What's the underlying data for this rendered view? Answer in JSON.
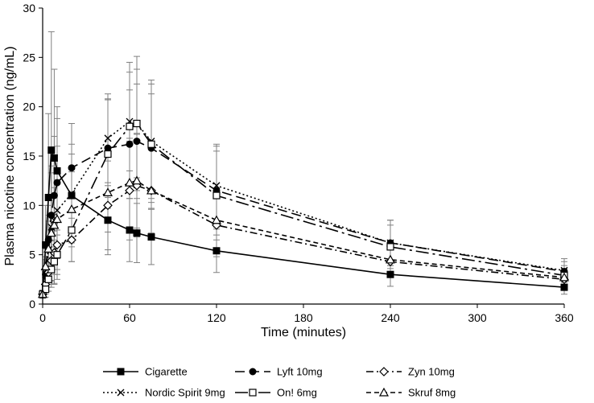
{
  "chart_data": {
    "type": "line",
    "xlabel": "Time (minutes)",
    "ylabel": "Plasma nicotine concentration (ng/mL)",
    "xlim": [
      0,
      360
    ],
    "ylim": [
      0,
      30
    ],
    "x_ticks": [
      0,
      60,
      120,
      180,
      240,
      300,
      360
    ],
    "y_ticks": [
      0,
      5,
      10,
      15,
      20,
      25,
      30
    ],
    "grid": false,
    "legend_position": "bottom",
    "series": [
      {
        "name": "Cigarette",
        "dash": "solid",
        "marker": "square-filled",
        "x": [
          0,
          2,
          4,
          6,
          8,
          10,
          20,
          45,
          60,
          65,
          75,
          120,
          240,
          360
        ],
        "y": [
          1.0,
          6.0,
          10.8,
          15.6,
          14.8,
          13.5,
          11.0,
          8.5,
          7.5,
          7.2,
          6.8,
          5.4,
          3.0,
          1.7
        ],
        "err": [
          0.4,
          4.0,
          8.5,
          12.0,
          9.0,
          6.5,
          4.2,
          3.5,
          3.2,
          3.0,
          2.8,
          2.2,
          1.2,
          0.7
        ]
      },
      {
        "name": "Lyft 10mg",
        "dash": "long-dash",
        "marker": "circle-filled",
        "x": [
          0,
          2,
          4,
          6,
          8,
          10,
          20,
          45,
          60,
          65,
          75,
          120,
          240,
          360
        ],
        "y": [
          1.0,
          3.0,
          6.5,
          9.0,
          11.0,
          12.3,
          13.8,
          15.8,
          16.2,
          16.5,
          15.8,
          11.5,
          6.2,
          3.3
        ],
        "err": [
          0.4,
          1.8,
          3.5,
          5.0,
          6.0,
          6.5,
          4.5,
          5.0,
          5.5,
          5.8,
          5.5,
          4.5,
          2.3,
          1.0
        ]
      },
      {
        "name": "Zyn 10mg",
        "dash": "dash-dot",
        "marker": "diamond-open",
        "x": [
          0,
          2,
          4,
          6,
          8,
          10,
          20,
          45,
          60,
          65,
          75,
          120,
          240,
          360
        ],
        "y": [
          1.0,
          2.0,
          3.2,
          4.4,
          5.2,
          6.0,
          6.5,
          10.0,
          11.5,
          12.0,
          11.5,
          8.0,
          4.3,
          2.5
        ],
        "err": [
          0.4,
          1.0,
          1.5,
          2.0,
          2.2,
          2.5,
          2.2,
          4.5,
          5.0,
          5.2,
          4.8,
          3.2,
          1.6,
          1.0
        ]
      },
      {
        "name": "Nordic Spirit 9mg",
        "dash": "dotted",
        "marker": "x-cross",
        "x": [
          0,
          2,
          4,
          6,
          8,
          10,
          20,
          45,
          60,
          65,
          75,
          120,
          240,
          360
        ],
        "y": [
          1.0,
          3.0,
          5.5,
          7.8,
          8.5,
          9.5,
          11.2,
          16.8,
          18.5,
          18.3,
          16.5,
          12.0,
          6.2,
          3.4
        ],
        "err": [
          0.4,
          1.5,
          3.5,
          5.5,
          6.5,
          6.5,
          5.0,
          4.5,
          5.0,
          5.5,
          5.8,
          4.2,
          2.3,
          1.2
        ]
      },
      {
        "name": "On! 6mg",
        "dash": "long-dash-dot",
        "marker": "square-open",
        "x": [
          0,
          2,
          4,
          6,
          8,
          10,
          20,
          45,
          60,
          65,
          75,
          120,
          240,
          360
        ],
        "y": [
          1.0,
          1.5,
          2.5,
          3.5,
          4.3,
          5.0,
          7.5,
          15.2,
          18.0,
          18.3,
          16.2,
          11.0,
          5.8,
          2.9
        ],
        "err": [
          0.4,
          0.8,
          1.2,
          1.8,
          2.2,
          2.5,
          3.2,
          5.5,
          6.5,
          6.8,
          6.5,
          4.5,
          2.2,
          1.0
        ]
      },
      {
        "name": "Skruf 8mg",
        "dash": "short-dash",
        "marker": "triangle-open",
        "x": [
          0,
          2,
          4,
          6,
          8,
          10,
          20,
          45,
          60,
          65,
          75,
          120,
          240,
          360
        ],
        "y": [
          1.0,
          3.8,
          5.6,
          7.2,
          8.0,
          8.6,
          9.6,
          11.3,
          12.3,
          12.5,
          11.5,
          8.5,
          4.5,
          2.7
        ],
        "err": [
          0.4,
          1.8,
          2.8,
          3.5,
          3.8,
          4.0,
          3.8,
          4.0,
          4.5,
          4.8,
          4.3,
          3.0,
          1.6,
          0.9
        ]
      }
    ]
  }
}
